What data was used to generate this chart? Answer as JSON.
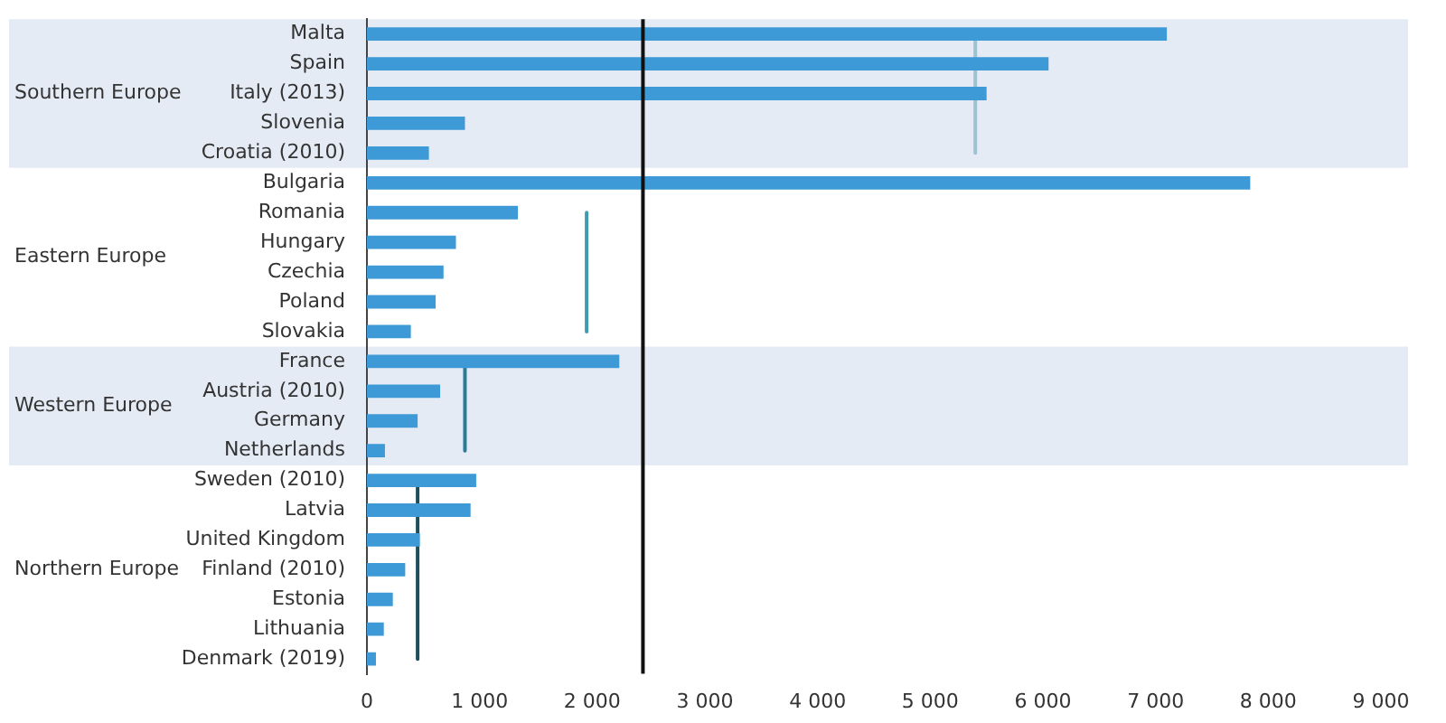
{
  "chart_data": {
    "type": "bar",
    "orientation": "horizontal",
    "categories": [
      "Malta",
      "Spain",
      "Italy (2013)",
      "Slovenia",
      "Croatia (2010)",
      "Bulgaria",
      "Romania",
      "Hungary",
      "Czechia",
      "Poland",
      "Slovakia",
      "France",
      "Austria (2010)",
      "Germany",
      "Netherlands",
      "Sweden (2010)",
      "Latvia",
      "United Kingdom",
      "Finland (2010)",
      "Estonia",
      "Lithuania",
      "Denmark (2019)"
    ],
    "series": [
      {
        "color": "#3d9ad6",
        "values": [
          7100,
          6050,
          5500,
          870,
          550,
          7840,
          1340,
          790,
          680,
          610,
          390,
          2240,
          650,
          450,
          160,
          970,
          920,
          470,
          340,
          230,
          150,
          80
        ]
      },
      {
        "type": "line",
        "color": "#9cc3cf",
        "values": [
          5400,
          5400,
          5400,
          5400,
          5400,
          null,
          null,
          null,
          null,
          null,
          null,
          null,
          null,
          null,
          null,
          null,
          null,
          null,
          null,
          null,
          null,
          null
        ]
      },
      {
        "type": "line",
        "color": "#3f9bb0",
        "values": [
          null,
          null,
          null,
          null,
          null,
          null,
          1950,
          1950,
          1950,
          1950,
          1950,
          null,
          null,
          null,
          null,
          null,
          null,
          null,
          null,
          null,
          null,
          null
        ]
      },
      {
        "type": "line",
        "color": "#2b7c96",
        "values": [
          null,
          null,
          null,
          null,
          null,
          null,
          null,
          null,
          null,
          null,
          null,
          870,
          870,
          870,
          870,
          null,
          null,
          null,
          null,
          null,
          null,
          null
        ]
      },
      {
        "type": "line",
        "color": "#1d4f5c",
        "values": [
          null,
          null,
          null,
          null,
          null,
          null,
          null,
          null,
          null,
          null,
          null,
          null,
          null,
          null,
          null,
          450,
          450,
          450,
          450,
          450,
          450,
          450
        ]
      }
    ],
    "xlim": [
      0,
      9000
    ],
    "xticks": [
      0,
      {
        "value": 1000,
        "label": "1 000"
      },
      {
        "value": 2000,
        "label": "2 000"
      },
      {
        "value": 3000,
        "label": "3 000"
      },
      {
        "value": 4000,
        "label": "4 000"
      },
      {
        "value": 5000,
        "label": "5 000"
      },
      {
        "value": 6000,
        "label": "6 000"
      },
      {
        "value": 7000,
        "label": "7 000"
      },
      {
        "value": 8000,
        "label": "8 000"
      },
      {
        "value": 9000,
        "label": "9 000"
      }
    ],
    "ref_lines": [
      {
        "axis": "x",
        "value": 2450,
        "color": "#111111"
      }
    ],
    "bands": [
      {
        "axis": "y",
        "from": "Malta",
        "to": "Croatia (2010)",
        "label": "Southern Europe",
        "color": "#e5ebf5"
      },
      {
        "axis": "y",
        "from": "France",
        "to": "Netherlands",
        "label": "Western Europe",
        "color": "#e5ebf5"
      }
    ],
    "annotations": [
      "Eastern Europe",
      "Northern Europe"
    ],
    "legend": false
  }
}
